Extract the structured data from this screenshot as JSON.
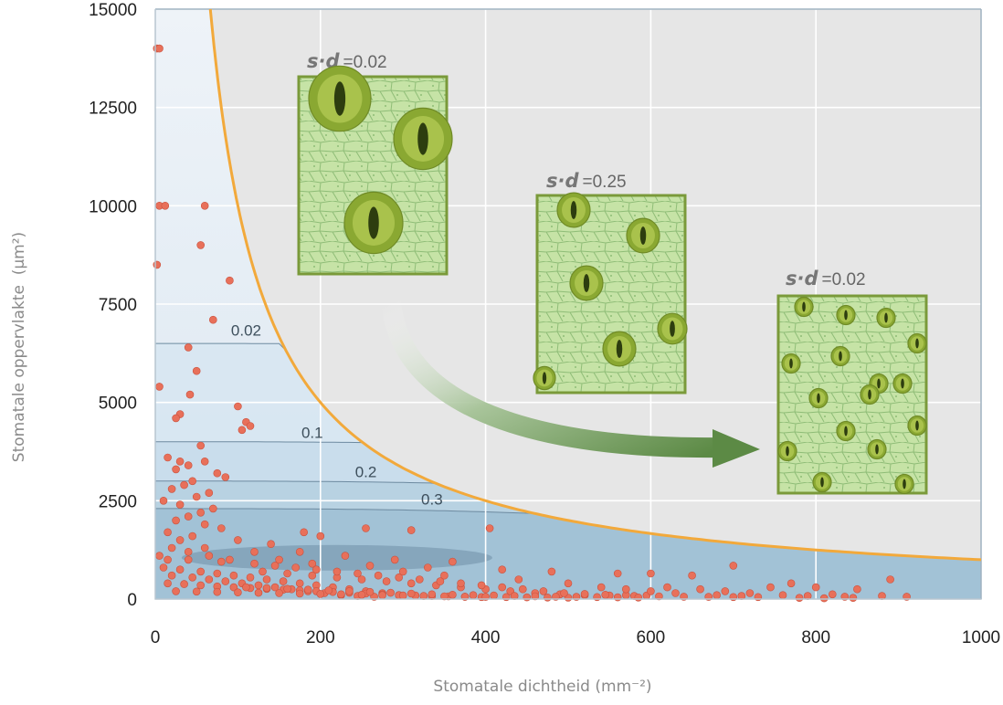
{
  "chart_data": {
    "type": "scatter",
    "title": "",
    "xlabel": "Stomatale dichtheid (mm⁻²)",
    "ylabel": "Stomatale oppervlakte  (µm²)",
    "xlim": [
      0,
      1000
    ],
    "ylim": [
      0,
      15000
    ],
    "x_ticks": [
      "0",
      "200",
      "400",
      "600",
      "800",
      "1000"
    ],
    "y_ticks": [
      "0",
      "2500",
      "5000",
      "7500",
      "10000",
      "12500",
      "15000"
    ],
    "grid": true,
    "boundary_curve": {
      "color": "#f2a93b",
      "xy_product": 1000000
    },
    "contours": [
      {
        "label": "0.02",
        "level_y": 6500,
        "label_x": 110,
        "label_y": 6700
      },
      {
        "label": "0.1",
        "level_y": 4000,
        "label_x": 190,
        "label_y": 4100
      },
      {
        "label": "0.2",
        "level_y": 3000,
        "label_x": 255,
        "label_y": 3100
      },
      {
        "label": "0.3",
        "level_y": 2300,
        "label_x": 335,
        "label_y": 2400
      }
    ],
    "insets": [
      {
        "s": "s·d",
        "value": "=0.02",
        "size": "large"
      },
      {
        "s": "s·d",
        "value": "=0.25",
        "size": "medium"
      },
      {
        "s": "s·d",
        "value": "=0.02",
        "size": "small"
      }
    ],
    "point_color": "#e8705a",
    "points": [
      [
        2,
        14000
      ],
      [
        5,
        14000
      ],
      [
        5,
        10000
      ],
      [
        12,
        10000
      ],
      [
        60,
        10000
      ],
      [
        55,
        9000
      ],
      [
        2,
        8500
      ],
      [
        90,
        8100
      ],
      [
        70,
        7100
      ],
      [
        40,
        6400
      ],
      [
        50,
        5800
      ],
      [
        5,
        5400
      ],
      [
        42,
        5200
      ],
      [
        100,
        4900
      ],
      [
        30,
        4700
      ],
      [
        25,
        4600
      ],
      [
        110,
        4500
      ],
      [
        115,
        4400
      ],
      [
        105,
        4300
      ],
      [
        55,
        3900
      ],
      [
        30,
        3500
      ],
      [
        15,
        3600
      ],
      [
        60,
        3500
      ],
      [
        40,
        3400
      ],
      [
        25,
        3300
      ],
      [
        75,
        3200
      ],
      [
        85,
        3100
      ],
      [
        45,
        3000
      ],
      [
        35,
        2900
      ],
      [
        20,
        2800
      ],
      [
        65,
        2700
      ],
      [
        50,
        2600
      ],
      [
        10,
        2500
      ],
      [
        30,
        2400
      ],
      [
        70,
        2300
      ],
      [
        55,
        2200
      ],
      [
        40,
        2100
      ],
      [
        25,
        2000
      ],
      [
        60,
        1900
      ],
      [
        80,
        1800
      ],
      [
        15,
        1700
      ],
      [
        180,
        1700
      ],
      [
        255,
        1800
      ],
      [
        310,
        1750
      ],
      [
        405,
        1800
      ],
      [
        200,
        1600
      ],
      [
        45,
        1600
      ],
      [
        30,
        1500
      ],
      [
        100,
        1500
      ],
      [
        140,
        1400
      ],
      [
        20,
        1300
      ],
      [
        60,
        1300
      ],
      [
        120,
        1200
      ],
      [
        175,
        1200
      ],
      [
        230,
        1100
      ],
      [
        5,
        1100
      ],
      [
        40,
        1000
      ],
      [
        80,
        950
      ],
      [
        150,
        1000
      ],
      [
        290,
        1000
      ],
      [
        360,
        950
      ],
      [
        190,
        900
      ],
      [
        260,
        850
      ],
      [
        330,
        800
      ],
      [
        420,
        750
      ],
      [
        480,
        700
      ],
      [
        560,
        650
      ],
      [
        600,
        650
      ],
      [
        650,
        600
      ],
      [
        700,
        850
      ],
      [
        770,
        400
      ],
      [
        800,
        300
      ],
      [
        850,
        250
      ],
      [
        890,
        500
      ],
      [
        10,
        800
      ],
      [
        30,
        750
      ],
      [
        55,
        700
      ],
      [
        75,
        650
      ],
      [
        95,
        600
      ],
      [
        115,
        550
      ],
      [
        135,
        500
      ],
      [
        155,
        450
      ],
      [
        175,
        400
      ],
      [
        195,
        350
      ],
      [
        215,
        300
      ],
      [
        235,
        250
      ],
      [
        255,
        200
      ],
      [
        275,
        150
      ],
      [
        295,
        100
      ],
      [
        20,
        600
      ],
      [
        45,
        550
      ],
      [
        65,
        500
      ],
      [
        85,
        450
      ],
      [
        105,
        400
      ],
      [
        125,
        350
      ],
      [
        145,
        300
      ],
      [
        165,
        250
      ],
      [
        185,
        200
      ],
      [
        205,
        150
      ],
      [
        225,
        100
      ],
      [
        245,
        80
      ],
      [
        265,
        60
      ],
      [
        15,
        400
      ],
      [
        35,
        380
      ],
      [
        55,
        350
      ],
      [
        75,
        320
      ],
      [
        95,
        300
      ],
      [
        115,
        280
      ],
      [
        135,
        260
      ],
      [
        155,
        240
      ],
      [
        175,
        220
      ],
      [
        195,
        200
      ],
      [
        215,
        180
      ],
      [
        235,
        160
      ],
      [
        255,
        140
      ],
      [
        275,
        120
      ],
      [
        295,
        100
      ],
      [
        315,
        90
      ],
      [
        335,
        80
      ],
      [
        355,
        70
      ],
      [
        375,
        60
      ],
      [
        395,
        50
      ],
      [
        25,
        200
      ],
      [
        50,
        190
      ],
      [
        75,
        180
      ],
      [
        100,
        170
      ],
      [
        125,
        160
      ],
      [
        150,
        150
      ],
      [
        175,
        140
      ],
      [
        200,
        130
      ],
      [
        225,
        120
      ],
      [
        250,
        110
      ],
      [
        275,
        100
      ],
      [
        300,
        90
      ],
      [
        325,
        80
      ],
      [
        350,
        70
      ],
      [
        375,
        60
      ],
      [
        400,
        55
      ],
      [
        425,
        50
      ],
      [
        450,
        45
      ],
      [
        475,
        40
      ],
      [
        500,
        35
      ],
      [
        130,
        700
      ],
      [
        160,
        650
      ],
      [
        190,
        600
      ],
      [
        220,
        550
      ],
      [
        250,
        500
      ],
      [
        280,
        450
      ],
      [
        310,
        400
      ],
      [
        340,
        350
      ],
      [
        370,
        300
      ],
      [
        400,
        250
      ],
      [
        430,
        200
      ],
      [
        460,
        150
      ],
      [
        490,
        120
      ],
      [
        520,
        100
      ],
      [
        550,
        90
      ],
      [
        580,
        80
      ],
      [
        610,
        70
      ],
      [
        640,
        60
      ],
      [
        670,
        55
      ],
      [
        700,
        50
      ],
      [
        120,
        900
      ],
      [
        145,
        850
      ],
      [
        170,
        800
      ],
      [
        195,
        750
      ],
      [
        220,
        700
      ],
      [
        245,
        650
      ],
      [
        270,
        600
      ],
      [
        295,
        550
      ],
      [
        320,
        500
      ],
      [
        345,
        450
      ],
      [
        370,
        400
      ],
      [
        395,
        350
      ],
      [
        420,
        300
      ],
      [
        445,
        250
      ],
      [
        470,
        200
      ],
      [
        495,
        150
      ],
      [
        520,
        130
      ],
      [
        545,
        110
      ],
      [
        570,
        100
      ],
      [
        595,
        90
      ],
      [
        110,
        300
      ],
      [
        135,
        280
      ],
      [
        160,
        260
      ],
      [
        185,
        240
      ],
      [
        210,
        220
      ],
      [
        235,
        200
      ],
      [
        260,
        180
      ],
      [
        285,
        160
      ],
      [
        310,
        140
      ],
      [
        335,
        120
      ],
      [
        360,
        110
      ],
      [
        385,
        100
      ],
      [
        410,
        90
      ],
      [
        435,
        80
      ],
      [
        460,
        70
      ],
      [
        485,
        60
      ],
      [
        510,
        55
      ],
      [
        535,
        50
      ],
      [
        560,
        45
      ],
      [
        585,
        40
      ],
      [
        620,
        300
      ],
      [
        660,
        250
      ],
      [
        690,
        200
      ],
      [
        720,
        150
      ],
      [
        745,
        300
      ],
      [
        760,
        100
      ],
      [
        790,
        80
      ],
      [
        820,
        120
      ],
      [
        835,
        60
      ],
      [
        845,
        30
      ],
      [
        880,
        80
      ],
      [
        910,
        60
      ],
      [
        730,
        50
      ],
      [
        780,
        30
      ],
      [
        810,
        20
      ],
      [
        40,
        1200
      ],
      [
        65,
        1100
      ],
      [
        90,
        1000
      ],
      [
        15,
        1000
      ],
      [
        300,
        700
      ],
      [
        350,
        600
      ],
      [
        440,
        500
      ],
      [
        500,
        400
      ],
      [
        540,
        300
      ],
      [
        570,
        250
      ],
      [
        600,
        200
      ],
      [
        630,
        150
      ],
      [
        680,
        100
      ],
      [
        710,
        80
      ]
    ]
  }
}
